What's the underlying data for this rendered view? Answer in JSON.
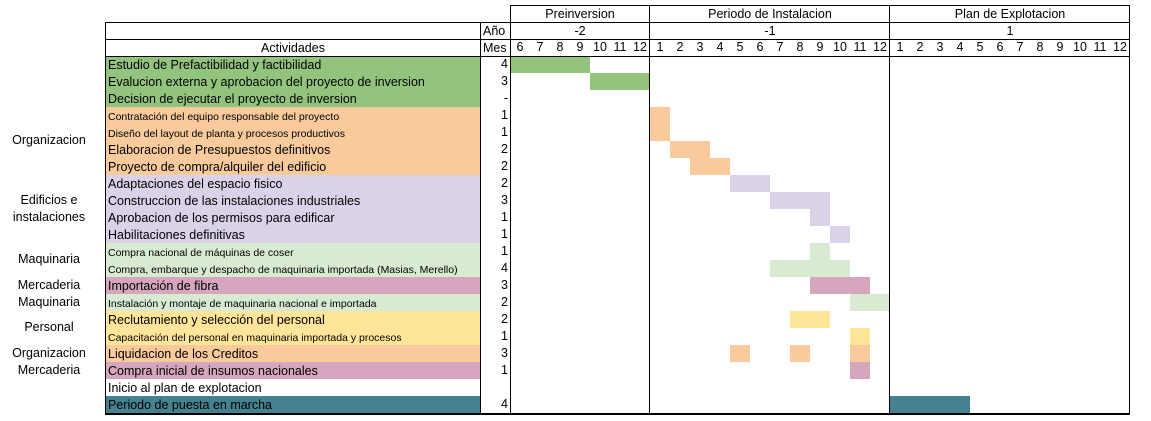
{
  "colors": {
    "green": "#93c47d",
    "orange": "#f9cb9c",
    "lavender": "#d9d2e9",
    "lightgreen": "#d9ead3",
    "pink": "#d5a6bd",
    "yellow": "#ffe599",
    "teal": "#45818e",
    "white": "#ffffff"
  },
  "header": {
    "activities": "Actividades",
    "year_label": "Año",
    "month_label": "Mes"
  },
  "periods": [
    {
      "name": "Preinversion",
      "year": "-2",
      "months": [
        "6",
        "7",
        "8",
        "9",
        "10",
        "11",
        "12"
      ]
    },
    {
      "name": "Periodo de Instalacion",
      "year": "-1",
      "months": [
        "1",
        "2",
        "3",
        "4",
        "5",
        "6",
        "7",
        "8",
        "9",
        "10",
        "11",
        "12"
      ]
    },
    {
      "name": "Plan de Explotacion",
      "year": "1",
      "months": [
        "1",
        "2",
        "3",
        "4",
        "5",
        "6",
        "7",
        "8",
        "9",
        "10",
        "11",
        "12"
      ]
    }
  ],
  "categories": [
    {
      "label": "Organizacion",
      "row": 4.5
    },
    {
      "label": "Edificios e",
      "row": 8
    },
    {
      "label": "instalaciones",
      "row": 9
    },
    {
      "label": "Maquinaria",
      "row": 11.5
    },
    {
      "label": "Mercaderia",
      "row": 13
    },
    {
      "label": "Maquinaria",
      "row": 14
    },
    {
      "label": "Personal",
      "row": 15.5
    },
    {
      "label": "Organizacion",
      "row": 17
    },
    {
      "label": "Mercaderia",
      "row": 18
    }
  ],
  "activities": [
    {
      "name": "Estudio de Prefactibilidad y factibilidad",
      "mes": "4",
      "color": "green",
      "bars": [
        {
          "period": 0,
          "from": 6,
          "to": 9
        }
      ]
    },
    {
      "name": "Evalucion externa y aprobacion del proyecto de inversion",
      "mes": "3",
      "color": "green",
      "bars": [
        {
          "period": 0,
          "from": 10,
          "to": 12
        }
      ]
    },
    {
      "name": "Decision de ejecutar el proyecto de inversion",
      "mes": "-",
      "color": "green",
      "bars": []
    },
    {
      "name": "Contratación del equipo responsable del proyecto",
      "mes": "1",
      "color": "orange",
      "small": true,
      "bars": [
        {
          "period": 1,
          "from": 1,
          "to": 1
        }
      ]
    },
    {
      "name": "Diseño del layout de planta y procesos productivos",
      "mes": "1",
      "color": "orange",
      "small": true,
      "bars": [
        {
          "period": 1,
          "from": 1,
          "to": 1
        }
      ]
    },
    {
      "name": "Elaboracion de Presupuestos definitivos",
      "mes": "2",
      "color": "orange",
      "bars": [
        {
          "period": 1,
          "from": 2,
          "to": 3
        }
      ]
    },
    {
      "name": "Proyecto de compra/alquiler del edificio",
      "mes": "2",
      "color": "orange",
      "bars": [
        {
          "period": 1,
          "from": 3,
          "to": 4
        }
      ]
    },
    {
      "name": "Adaptaciones del espacio fisico",
      "mes": "2",
      "color": "lavender",
      "bars": [
        {
          "period": 1,
          "from": 5,
          "to": 6
        }
      ]
    },
    {
      "name": "Construccion de las instalaciones industriales",
      "mes": "3",
      "color": "lavender",
      "bars": [
        {
          "period": 1,
          "from": 7,
          "to": 9
        }
      ]
    },
    {
      "name": "Aprobacion de los permisos para edificar",
      "mes": "1",
      "color": "lavender",
      "bars": [
        {
          "period": 1,
          "from": 9,
          "to": 9
        }
      ]
    },
    {
      "name": "Habilitaciones definitivas",
      "mes": "1",
      "color": "lavender",
      "bars": [
        {
          "period": 1,
          "from": 10,
          "to": 10
        }
      ]
    },
    {
      "name": "Compra nacional de máquinas de coser",
      "mes": "1",
      "color": "lightgreen",
      "small": true,
      "bars": [
        {
          "period": 1,
          "from": 9,
          "to": 9
        }
      ]
    },
    {
      "name": "Compra, embarque y despacho de maquinaria importada (Masias, Merello)",
      "mes": "4",
      "color": "lightgreen",
      "small": true,
      "bars": [
        {
          "period": 1,
          "from": 7,
          "to": 10
        }
      ]
    },
    {
      "name": "Importación de fibra",
      "mes": "3",
      "color": "pink",
      "bars": [
        {
          "period": 1,
          "from": 9,
          "to": 11
        }
      ]
    },
    {
      "name": "Instalación y montaje de maquinaria nacional e importada",
      "mes": "2",
      "color": "lightgreen",
      "small": true,
      "bars": [
        {
          "period": 1,
          "from": 11,
          "to": 12
        }
      ]
    },
    {
      "name": "Reclutamiento y selección del personal",
      "mes": "2",
      "color": "yellow",
      "bars": [
        {
          "period": 1,
          "from": 8,
          "to": 9
        }
      ]
    },
    {
      "name": "Capacitación del personal en maquinaria importada y procesos",
      "mes": "1",
      "color": "yellow",
      "small": true,
      "bars": [
        {
          "period": 1,
          "from": 11,
          "to": 11
        }
      ]
    },
    {
      "name": "Liquidacion de los Creditos",
      "mes": "3",
      "color": "orange",
      "bars": [
        {
          "period": 1,
          "from": 5,
          "to": 5
        },
        {
          "period": 1,
          "from": 8,
          "to": 8
        },
        {
          "period": 1,
          "from": 11,
          "to": 11
        }
      ]
    },
    {
      "name": "Compra inicial de insumos nacionales",
      "mes": "1",
      "color": "pink",
      "bars": [
        {
          "period": 1,
          "from": 11,
          "to": 11
        }
      ]
    },
    {
      "name": "Inicio al plan de explotacion",
      "mes": "",
      "color": "white",
      "bars": []
    },
    {
      "name": "Periodo de puesta en marcha",
      "mes": "4",
      "color": "teal",
      "bars": [
        {
          "period": 2,
          "from": 1,
          "to": 4
        }
      ]
    }
  ]
}
